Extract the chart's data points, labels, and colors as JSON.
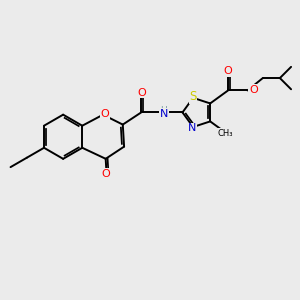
{
  "bg_color": "#ebebeb",
  "bond_color": "#000000",
  "bond_width": 1.4,
  "atom_colors": {
    "O": "#ff0000",
    "N": "#0000cd",
    "S": "#cccc00",
    "C": "#000000",
    "H": "#7a9e9e"
  },
  "font_size": 7.0,
  "fig_size": [
    3.0,
    3.0
  ],
  "dpi": 100
}
